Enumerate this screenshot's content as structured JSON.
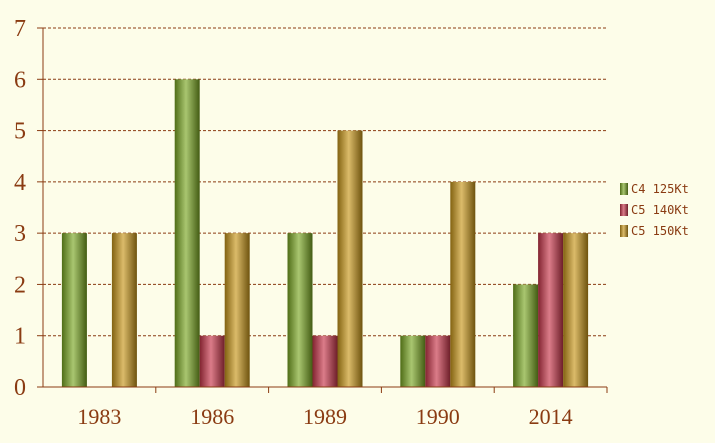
{
  "chart_data": {
    "type": "bar",
    "title": "",
    "xlabel": "",
    "ylabel": "",
    "categories": [
      "1983",
      "1986",
      "1989",
      "1990",
      "2014"
    ],
    "series": [
      {
        "name": "C4 125Kt",
        "values": [
          3,
          6,
          3,
          1,
          2
        ],
        "color": "#7aa823"
      },
      {
        "name": "C5 140Kt",
        "values": [
          0,
          1,
          1,
          1,
          3
        ],
        "color": "#c8364a"
      },
      {
        "name": "C5 150Kt",
        "values": [
          3,
          3,
          5,
          4,
          3
        ],
        "color": "#c8961a"
      }
    ],
    "ylim": [
      0,
      7
    ],
    "yticks": [
      "0",
      "1",
      "2",
      "3",
      "4",
      "5",
      "6",
      "7"
    ],
    "grid": true,
    "legend_position": "right",
    "colors": {
      "background": "#fdfde9",
      "axis": "#8a3b12",
      "grid": "#8a3b12",
      "text": "#8a3b12"
    }
  }
}
